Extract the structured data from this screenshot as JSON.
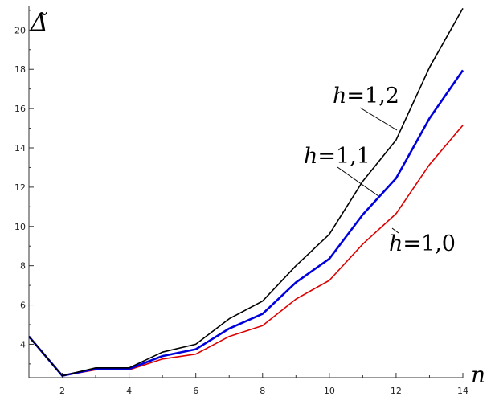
{
  "chart_data": {
    "type": "line",
    "title": "",
    "xlabel": "n",
    "ylabel": "Δ̃",
    "xlim": [
      1,
      14
    ],
    "ylim": [
      2.3,
      21.2
    ],
    "xticks": [
      2,
      4,
      6,
      8,
      10,
      12,
      14
    ],
    "yticks": [
      4,
      6,
      8,
      10,
      12,
      14,
      16,
      18,
      20
    ],
    "grid": false,
    "x": [
      1,
      2,
      3,
      4,
      5,
      6,
      7,
      8,
      9,
      10,
      11,
      12,
      13,
      14
    ],
    "series": [
      {
        "name": "h=1,2",
        "label_var": "h",
        "label_rest": "=1,2",
        "color": "#000000",
        "values": [
          4.4,
          2.4,
          2.8,
          2.8,
          3.6,
          4.0,
          5.3,
          6.2,
          8.0,
          9.6,
          12.3,
          14.4,
          18.1,
          21.1
        ]
      },
      {
        "name": "h=1,1",
        "label_var": "h",
        "label_rest": "=1,1",
        "color": "#0000dd",
        "values": [
          4.4,
          2.4,
          2.75,
          2.75,
          3.4,
          3.75,
          4.8,
          5.55,
          7.15,
          8.35,
          10.6,
          12.45,
          15.5,
          17.95
        ]
      },
      {
        "name": "h=1,0",
        "label_var": "h",
        "label_rest": "=1,0",
        "color": "#dd0000",
        "values": [
          4.4,
          2.4,
          2.7,
          2.7,
          3.25,
          3.5,
          4.4,
          4.95,
          6.3,
          7.25,
          9.1,
          10.65,
          13.15,
          15.15
        ]
      }
    ]
  }
}
